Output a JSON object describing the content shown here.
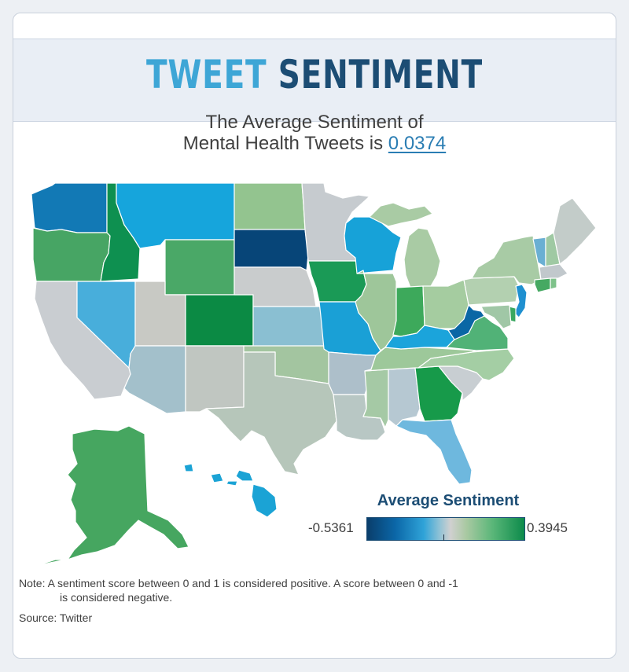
{
  "header": {
    "title_part1": "TWEET",
    "title_part2": "SENTIMENT"
  },
  "subtitle": {
    "line1": "The Average Sentiment of",
    "line2_prefix": "Mental Health Tweets is ",
    "value": "0.0374"
  },
  "legend": {
    "title": "Average Sentiment",
    "min_label": "-0.5361",
    "max_label": "0.3945",
    "min": -0.5361,
    "max": 0.3945,
    "scale_colors": [
      "#0a3e6b",
      "#0b67a8",
      "#2fa3d8",
      "#8fc2d6",
      "#d0d0d0",
      "#a9c9a2",
      "#59b678",
      "#0b8a4a"
    ]
  },
  "note": {
    "line1": "Note: A sentiment score between 0 and 1 is considered positive. A score between 0 and -1",
    "line2": "is considered negative."
  },
  "source": "Source: Twitter",
  "colors": {
    "accent_light": "#3ea6d6",
    "accent_dark": "#1c4d74",
    "state_border": "#ffffff"
  }
}
